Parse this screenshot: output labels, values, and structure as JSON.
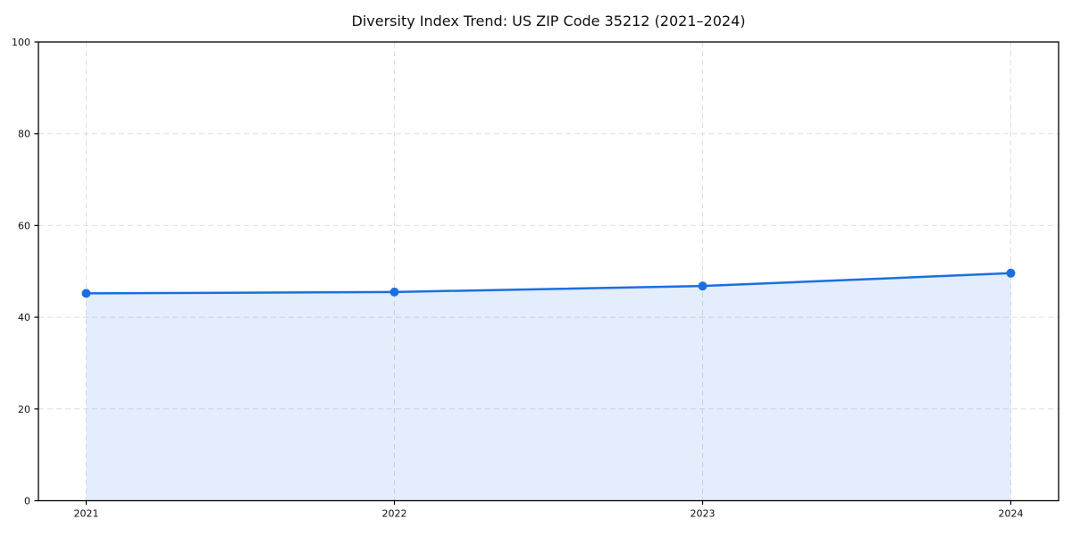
{
  "chart_data": {
    "type": "area",
    "title": "Diversity Index Trend: US ZIP Code 35212 (2021–2024)",
    "xlabel": "",
    "ylabel": "",
    "x": [
      2021,
      2022,
      2023,
      2024
    ],
    "x_tick_labels": [
      "2021",
      "2022",
      "2023",
      "2024"
    ],
    "series": [
      {
        "name": "Diversity Index",
        "values": [
          45.2,
          45.5,
          46.8,
          49.6
        ]
      }
    ],
    "ylim": [
      0,
      100
    ],
    "yticks": [
      0,
      20,
      40,
      60,
      80,
      100
    ],
    "grid": true,
    "grid_style": "dashed",
    "legend_position": "none",
    "marker": "circle",
    "colors": {
      "line": "#1B6FE0",
      "marker": "#1B6FE0",
      "fill": "rgba(27,111,224,0.12)",
      "grid": "#DFDFDF",
      "spine": "#000000",
      "tick_label": "#111111",
      "background": "#FFFFFF"
    }
  }
}
